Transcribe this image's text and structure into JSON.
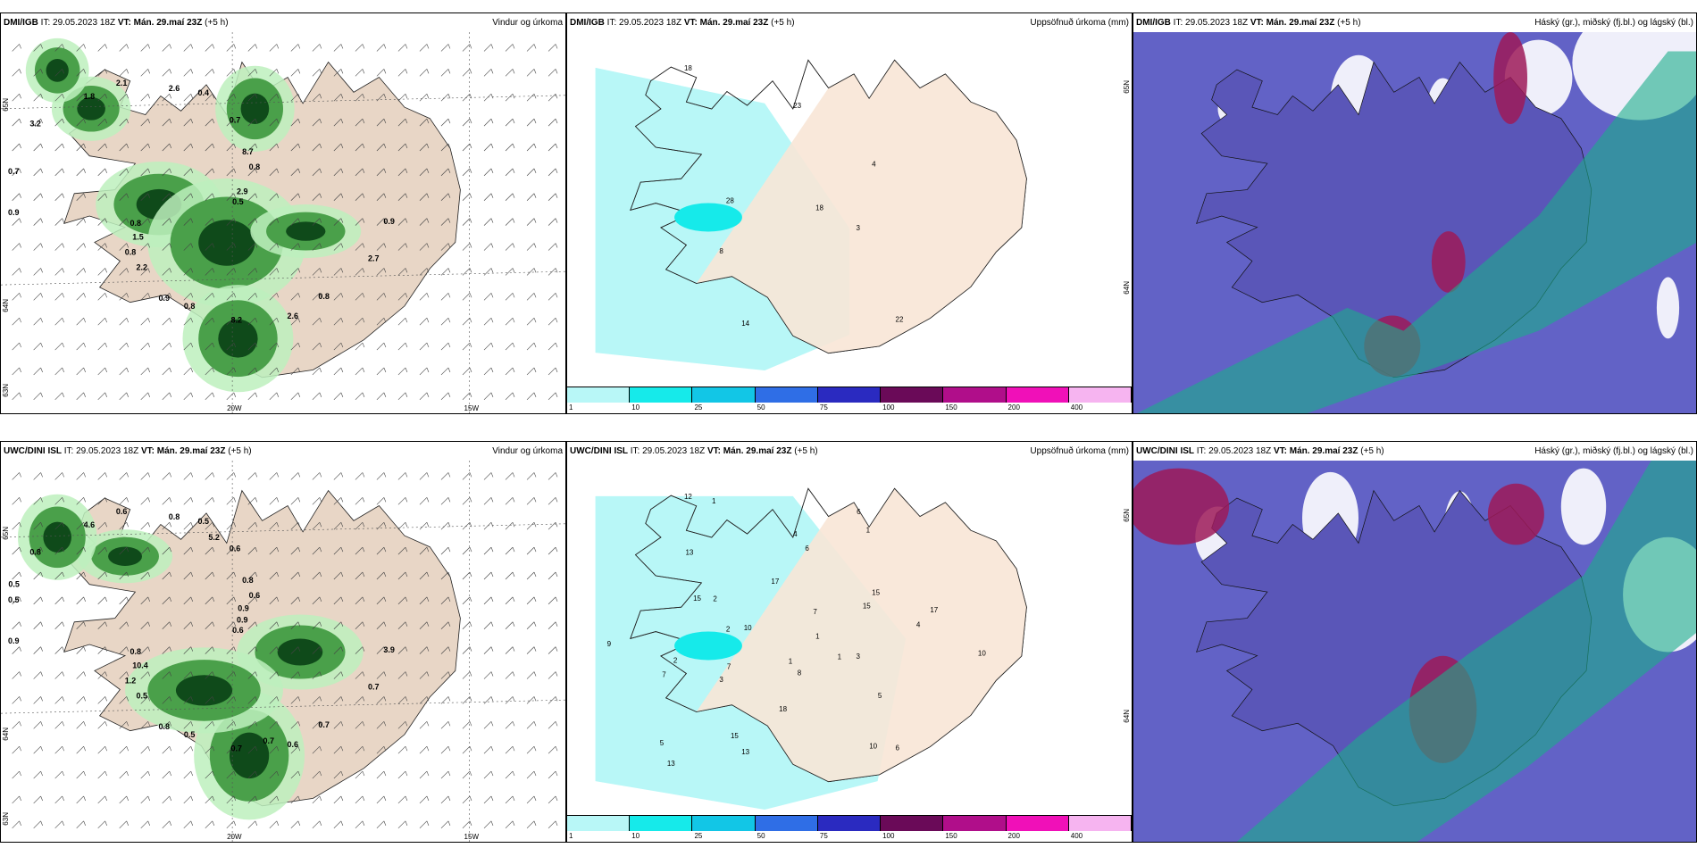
{
  "rows": [
    {
      "panels": [
        {
          "model": "DMI/IGB",
          "it": "IT: 29.05.2023 18Z",
          "vt_label": "VT:",
          "vt": "Mán. 29.maí 23Z",
          "lead": "(+5 h)",
          "title": "Vindur og úrkoma",
          "type": "wind"
        },
        {
          "model": "DMI/IGB",
          "it": "IT: 29.05.2023 18Z",
          "vt_label": "VT:",
          "vt": "Mán. 29.maí 23Z",
          "lead": "(+5 h)",
          "title": "Uppsöfnuð úrkoma (mm)",
          "type": "precip"
        },
        {
          "model": "DMI/IGB",
          "it": "IT: 29.05.2023 18Z",
          "vt_label": "VT:",
          "vt": "Mán. 29.maí 23Z",
          "lead": "(+5 h)",
          "title": "Háský (gr.), miðský (fj.bl.) og lágský (bl.)",
          "type": "cloud"
        }
      ]
    },
    {
      "panels": [
        {
          "model": "UWC/DINI ISL",
          "it": "IT: 29.05.2023 18Z",
          "vt_label": "VT:",
          "vt": "Mán. 29.maí 23Z",
          "lead": "(+5 h)",
          "title": "Vindur og úrkoma",
          "type": "wind"
        },
        {
          "model": "UWC/DINI ISL",
          "it": "IT: 29.05.2023 18Z",
          "vt_label": "VT:",
          "vt": "Mán. 29.maí 23Z",
          "lead": "(+5 h)",
          "title": "Uppsöfnuð úrkoma (mm)",
          "type": "precip"
        },
        {
          "model": "UWC/DINI ISL",
          "it": "IT: 29.05.2023 18Z",
          "vt_label": "VT:",
          "vt": "Mán. 29.maí 23Z",
          "lead": "(+5 h)",
          "title": "Háský (gr.), miðský (fj.bl.) og lágský (bl.)",
          "type": "cloud"
        }
      ]
    }
  ],
  "axis_labels": {
    "lat_top": "65N",
    "lat_mid": "64N",
    "lat_bottom": "63N",
    "lon_20": "20W",
    "lon_15": "15W"
  },
  "colorbar": {
    "ticks": [
      "1",
      "10",
      "25",
      "50",
      "75",
      "100",
      "150",
      "200",
      "400"
    ],
    "colors": [
      "#b8f7f7",
      "#16eaea",
      "#12c6e6",
      "#2f6ee6",
      "#2a2ac0",
      "#6a0a58",
      "#b00e8a",
      "#f010b8",
      "#f6b4f0"
    ]
  },
  "wind_labels_top": [
    "0.5",
    "0.8",
    "0.4",
    "2.6",
    "0.7",
    "0.8",
    "0.9",
    "2.1",
    "2.7",
    "0.8",
    "0.7",
    "8.2",
    "3.2",
    "2.9",
    "2.2",
    "2.6",
    "0.8",
    "0.9",
    "8.7",
    "0.8",
    "1.8",
    "0.9",
    "1.5"
  ],
  "wind_labels_bottom": [
    "0.6",
    "1.2",
    "0.5",
    "0.6",
    "0.5",
    "0.6",
    "0.8",
    "0.6",
    "0.7",
    "0.8",
    "0.6",
    "0.7",
    "0.8",
    "0.9",
    "0.5",
    "0.8",
    "0.7",
    "0.9",
    "0.8",
    "0.5",
    "4.6",
    "3.9",
    "10.4",
    "5.2",
    "0.7",
    "0.5",
    "0.9"
  ],
  "precip_labels_top": [
    "18",
    "8",
    "23",
    "22",
    "28",
    "4",
    "14",
    "18",
    "3"
  ],
  "precip_labels_bottom": [
    "1",
    "3",
    "4",
    "6",
    "2",
    "15",
    "13",
    "12",
    "3",
    "7",
    "6",
    "8",
    "15",
    "17",
    "13",
    "17",
    "5",
    "9",
    "7",
    "18",
    "13",
    "10",
    "7",
    "6",
    "10",
    "10",
    "15",
    "15",
    "1",
    "1",
    "2",
    "1",
    "1",
    "2",
    "4",
    "5"
  ],
  "colors": {
    "land": "#f8e6d6",
    "landwind": "#e8d6c6",
    "ocean": "#ffffff",
    "cloudbg": "#6262c6",
    "lowcloud": "#9e1a58",
    "midcloud": "#1aae8a",
    "highcloud": "#ffffff"
  }
}
